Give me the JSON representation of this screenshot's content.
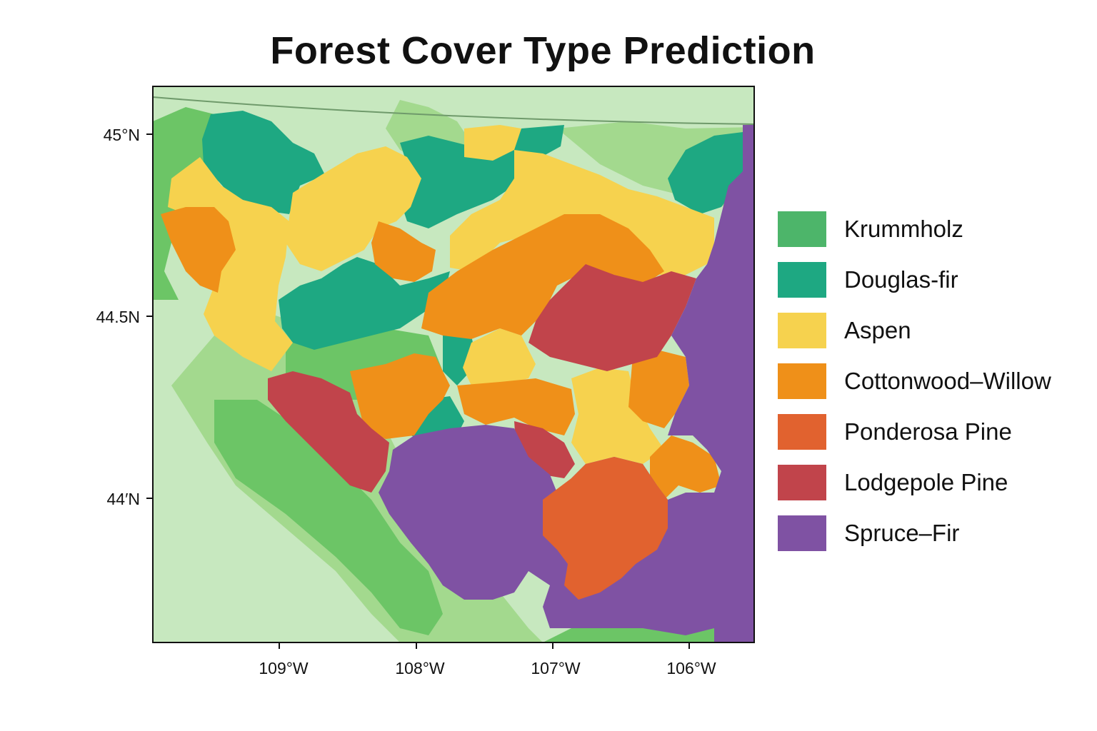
{
  "title": "Forest Cover Type Prediction",
  "axes": {
    "x_ticks": [
      "109°W",
      "108°W",
      "107°W",
      "106°W"
    ],
    "y_ticks": [
      "45°N",
      "44.5N",
      "44′N"
    ]
  },
  "legend": [
    {
      "label": "Krummholz",
      "color": "#4db56a"
    },
    {
      "label": "Douglas-fir",
      "color": "#1ea882"
    },
    {
      "label": "Aspen",
      "color": "#f6d24e"
    },
    {
      "label": "Cottonwood–Willow",
      "color": "#ef9019"
    },
    {
      "label": "Ponderosa Pine",
      "color": "#e1622f"
    },
    {
      "label": "Lodgepole Pine",
      "color": "#c1444b"
    },
    {
      "label": "Spruce–Fir",
      "color": "#7f52a3"
    }
  ],
  "colors": {
    "background": "#c7e8bf",
    "light_green": "#a3d98e",
    "mid_green": "#6cc566"
  }
}
